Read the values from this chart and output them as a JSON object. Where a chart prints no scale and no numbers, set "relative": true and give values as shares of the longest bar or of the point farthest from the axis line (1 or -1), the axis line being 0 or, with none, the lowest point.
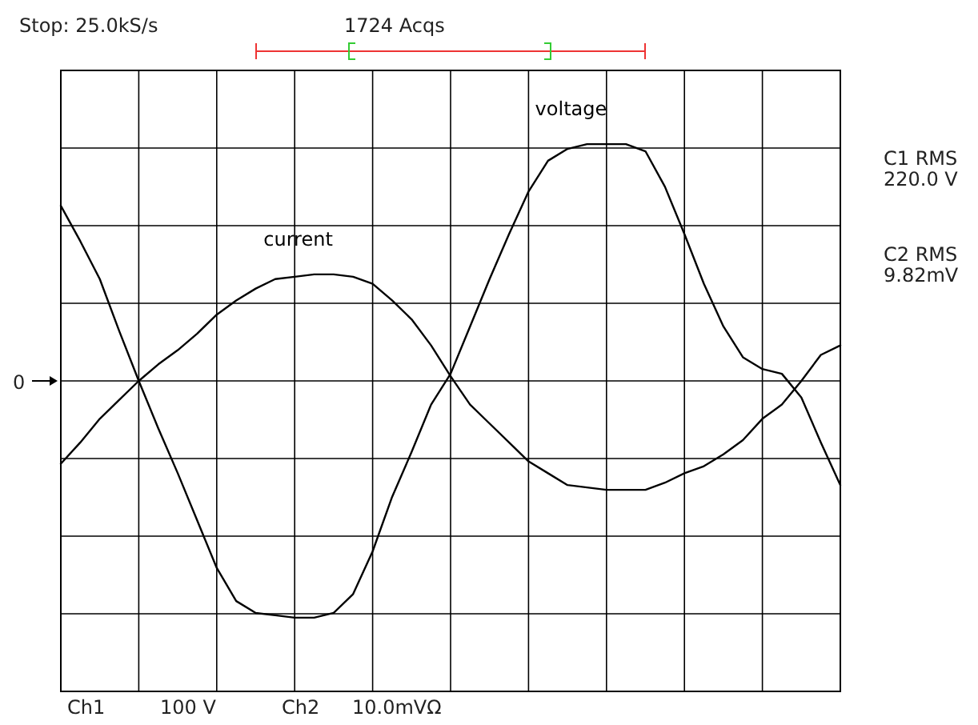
{
  "chart_data": {
    "type": "line",
    "relative": true,
    "grid": true,
    "marker": "none",
    "line_style": "solid",
    "categories": [
      null,
      null,
      null,
      null,
      null,
      null,
      null,
      null,
      null,
      null,
      null,
      null,
      null,
      null,
      null,
      null,
      null,
      null,
      null,
      null,
      null,
      null,
      null,
      null,
      null,
      null,
      null,
      null,
      null,
      null,
      null,
      null,
      null,
      null,
      null,
      null,
      null,
      null,
      null,
      null,
      null
    ],
    "series": [
      {
        "name": "current",
        "color": "#000000",
        "values": [
          -0.35,
          -0.26,
          -0.16,
          -0.08,
          0,
          0.07,
          0.13,
          0.2,
          0.28,
          0.34,
          0.39,
          0.43,
          0.44,
          0.45,
          0.45,
          0.44,
          0.41,
          0.34,
          0.26,
          0.15,
          0.02,
          -0.1,
          -0.18,
          -0.26,
          -0.34,
          -0.39,
          -0.44,
          -0.45,
          -0.46,
          -0.46,
          -0.46,
          -0.43,
          -0.39,
          -0.36,
          -0.31,
          -0.25,
          -0.16,
          -0.1,
          0,
          0.11,
          0.15
        ]
      },
      {
        "name": "voltage",
        "color": "#000000",
        "values": [
          0.74,
          0.59,
          0.43,
          0.21,
          0,
          -0.2,
          -0.39,
          -0.59,
          -0.79,
          -0.93,
          -0.98,
          -0.99,
          -1,
          -1,
          -0.98,
          -0.9,
          -0.72,
          -0.49,
          -0.3,
          -0.1,
          0.03,
          0.23,
          0.43,
          0.62,
          0.8,
          0.93,
          0.98,
          1,
          1,
          1,
          0.97,
          0.82,
          0.62,
          0.41,
          0.23,
          0.1,
          0.05,
          0.03,
          -0.07,
          -0.26,
          -0.44
        ]
      }
    ],
    "annotations": [
      "Stop: 25.0kS/s",
      "1724 Acqs",
      "C1 RMS\n220.0 V",
      "C2 RMS\n9.82mV",
      "0",
      "Ch1",
      "100 V",
      "Ch2",
      "10.0mVΩ"
    ]
  }
}
